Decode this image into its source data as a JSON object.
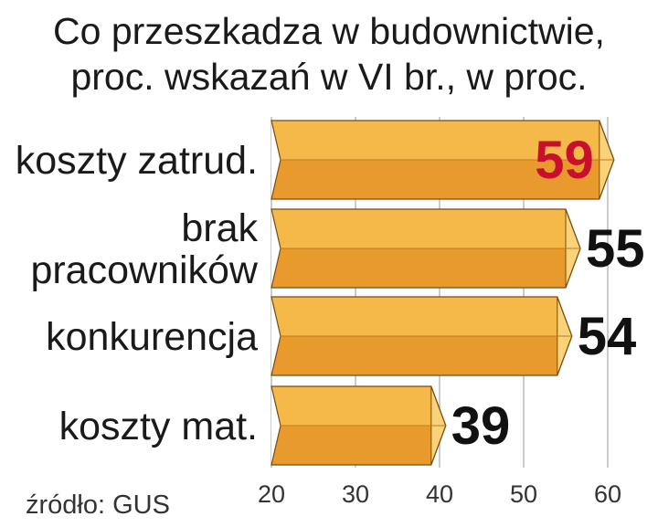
{
  "chart_data": {
    "type": "bar",
    "orientation": "horizontal",
    "title_lines": [
      "Co przeszkadza w budownictwie,",
      "proc. wskazań w VI br., w proc."
    ],
    "categories": [
      [
        "koszty zatrud."
      ],
      [
        "brak",
        "pracowników"
      ],
      [
        "konkurencja"
      ],
      [
        "koszty mat."
      ]
    ],
    "values": [
      59,
      55,
      54,
      39
    ],
    "value_labels": [
      "59",
      "55",
      "54",
      "39"
    ],
    "xlim": [
      20,
      60
    ],
    "xticks": [
      "20",
      "30",
      "40",
      "50",
      "60"
    ],
    "grid": true,
    "source": "źródło: GUS",
    "colors": {
      "bar_top": "#f5b94a",
      "bar_bottom": "#e99a2c",
      "bar_cap": "#f9d27a",
      "bar_outline": "#7a4a10",
      "label_highlight": "#c8102e",
      "label_default": "#111111",
      "grid": "#bbbbbb"
    }
  }
}
